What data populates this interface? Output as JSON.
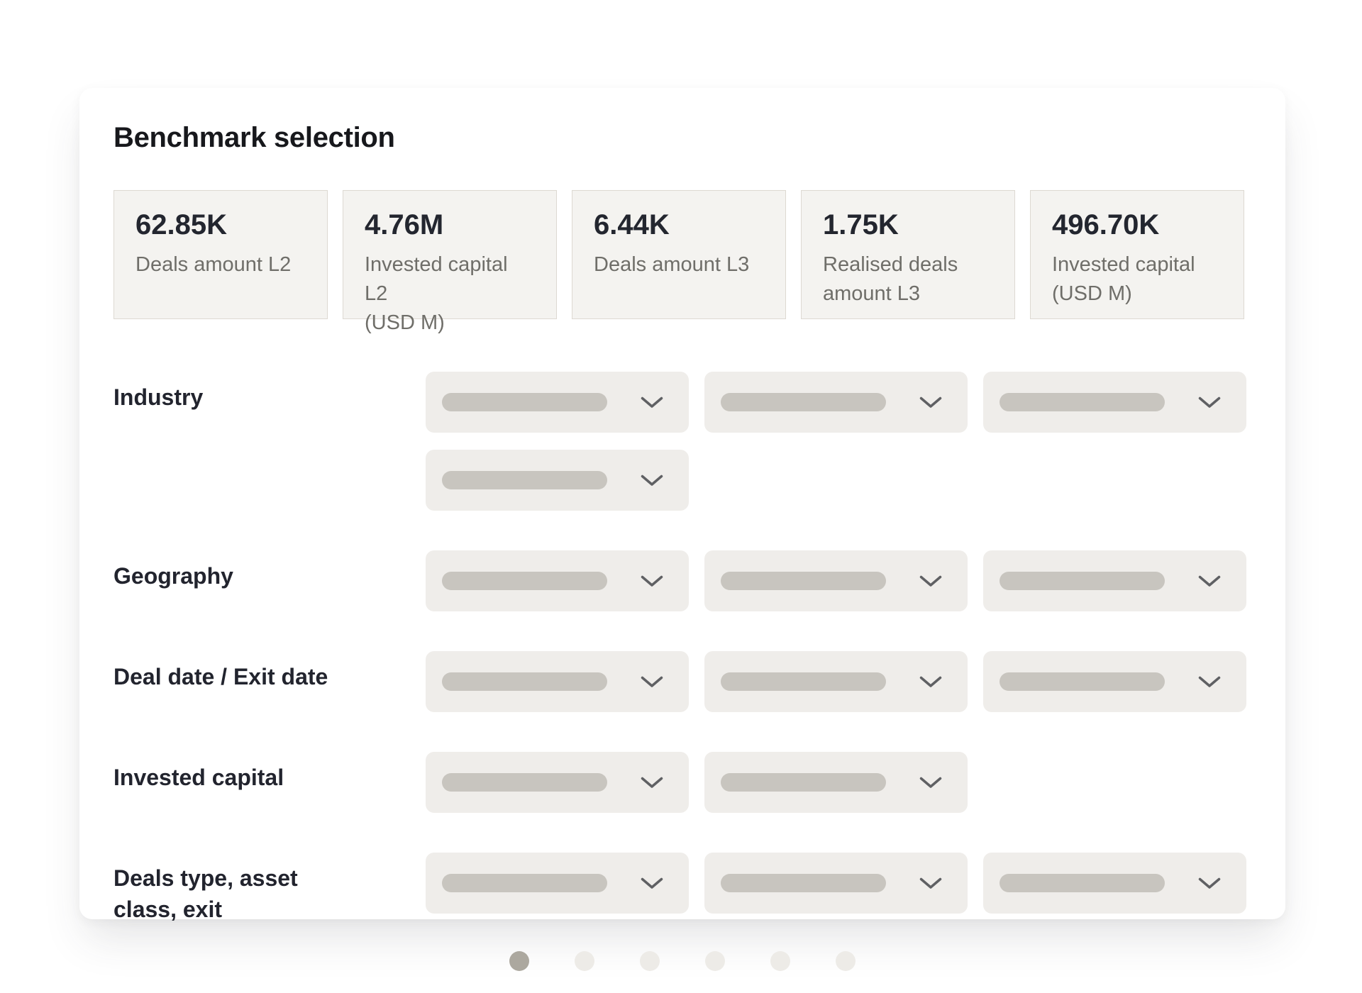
{
  "panel": {
    "title": "Benchmark selection"
  },
  "stats": [
    {
      "value": "62.85K",
      "label": "Deals amount L2"
    },
    {
      "value": "4.76M",
      "label": "Invested capital L2\n(USD M)"
    },
    {
      "value": "6.44K",
      "label": "Deals amount L3"
    },
    {
      "value": "1.75K",
      "label": "Realised deals\namount L3"
    },
    {
      "value": "496.70K",
      "label": "Invested capital\n(USD M)"
    }
  ],
  "filters": [
    {
      "id": "industry",
      "label": "Industry",
      "dropdown_rows": [
        3,
        1
      ]
    },
    {
      "id": "geography",
      "label": "Geography",
      "dropdown_rows": [
        3
      ]
    },
    {
      "id": "deal-date-exit-date",
      "label": "Deal date / Exit date",
      "dropdown_rows": [
        3
      ]
    },
    {
      "id": "invested-capital",
      "label": "Invested capital",
      "dropdown_rows": [
        2
      ]
    },
    {
      "id": "deals-type-asset-class-exit",
      "label": "Deals type, asset\nclass, exit",
      "dropdown_rows": [
        3
      ]
    }
  ],
  "carousel": {
    "dot_count": 6,
    "active_index": 0
  },
  "icons": {
    "dropdown_icon": "chevron-down-icon"
  },
  "colors": {
    "chevron": "#5f6063",
    "skeleton_bar": "#c8c5bf",
    "dropdown_bg": "#efedea",
    "stat_card_bg": "#f4f3f0",
    "stat_card_border": "#ddd9d2",
    "dot_active": "#aca89f",
    "dot_inactive": "#edebe7"
  }
}
